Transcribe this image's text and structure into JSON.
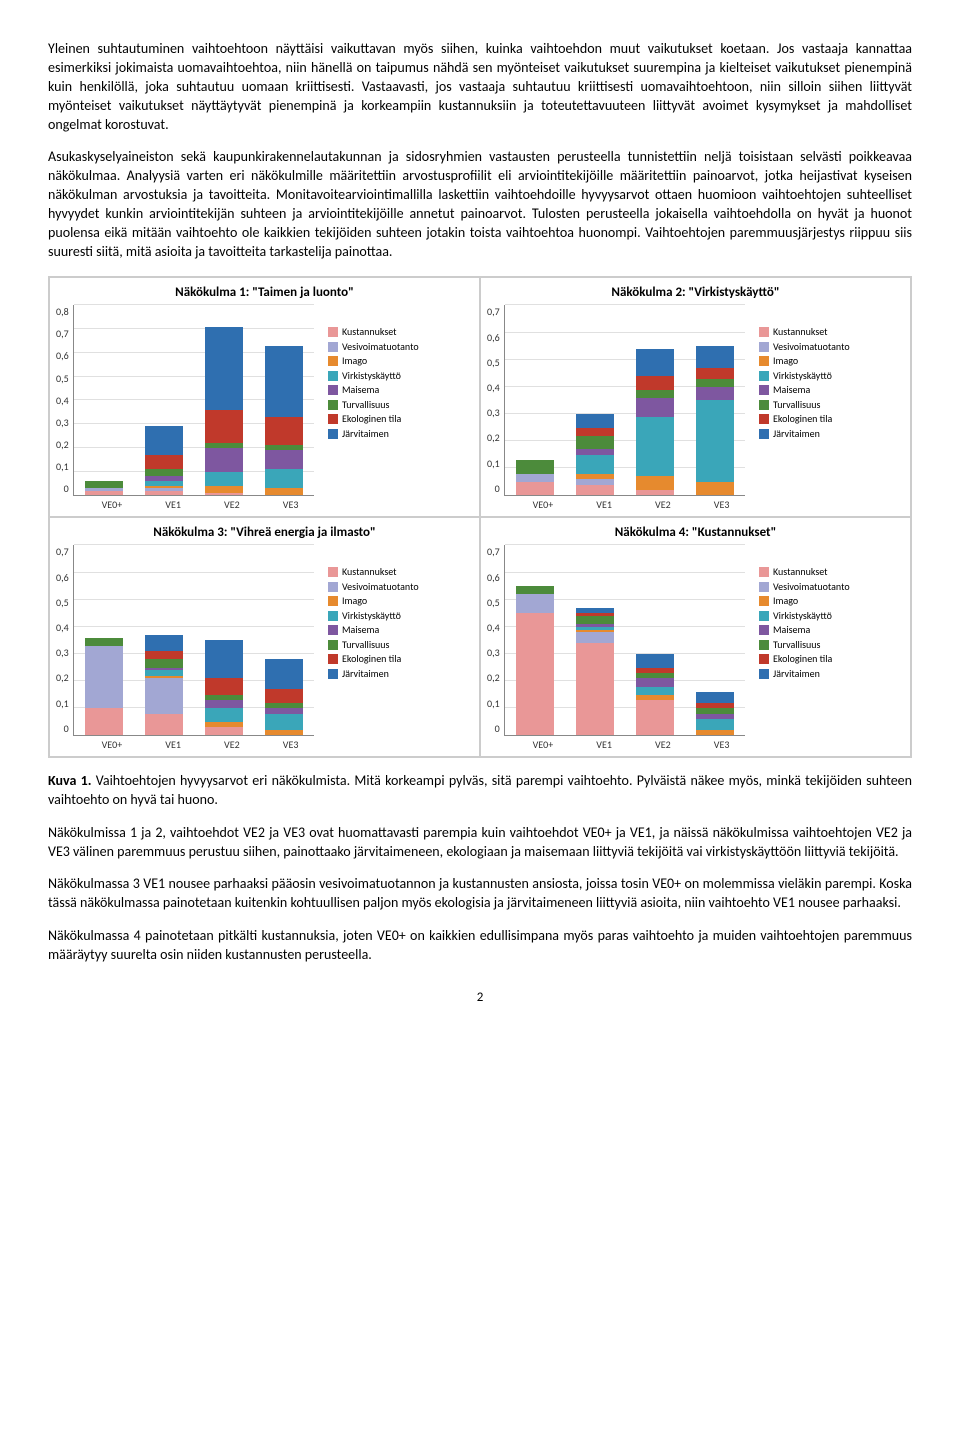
{
  "paragraphs": {
    "p1": "Yleinen suhtautuminen vaihtoehtoon näyttäisi vaikuttavan myös siihen, kuinka vaihtoehdon muut vaikutukset koetaan. Jos vastaaja kannattaa esimerkiksi jokimaista uomavaihtoehtoa, niin hänellä on taipumus nähdä sen myönteiset vaikutukset suurempina ja kielteiset vaikutukset pienempinä kuin henkilöllä, joka suhtautuu uomaan kriittisesti. Vastaavasti, jos vastaaja suhtautuu kriittisesti uomavaihtoehtoon, niin silloin siihen liittyvät myönteiset vaikutukset näyttäytyvät pienempinä ja korkeampiin kustannuksiin ja toteutettavuuteen liittyvät avoimet kysymykset ja mahdolliset ongelmat korostuvat.",
    "p2": "Asukaskyselyaineiston sekä kaupunkirakennelautakunnan ja sidosryhmien vastausten perusteella tunnistettiin neljä toisistaan selvästi poikkeavaa näkökulmaa. Analyysiä varten eri näkökulmille määritettiin arvostusprofiilit eli arviointitekijöille määritettiin painoarvot, jotka heijastivat kyseisen näkökulman arvostuksia ja tavoitteita. Monitavoitearviointimallilla laskettiin vaihtoehdoille hyvyysarvot ottaen huomioon vaihtoehtojen suhteelliset hyvyydet kunkin arviointitekijän suhteen ja arviointitekijöille annetut painoarvot. Tulosten perusteella jokaisella vaihtoehdolla on hyvät ja huonot puolensa eikä mitään vaihtoehto ole kaikkien tekijöiden suhteen jotakin toista vaihtoehtoa huonompi. Vaihtoehtojen paremmuusjärjestys riippuu siis suuresti siitä, mitä asioita ja tavoitteita tarkastelija painottaa.",
    "caption_label": "Kuva 1.",
    "caption_text": " Vaihtoehtojen hyvyysarvot eri näkökulmista. Mitä korkeampi pylväs, sitä parempi vaihtoehto. Pylväistä näkee myös, minkä tekijöiden suhteen vaihtoehto on hyvä tai huono.",
    "p3": "Näkökulmissa 1 ja 2, vaihtoehdot VE2 ja VE3 ovat huomattavasti parempia kuin vaihtoehdot VE0+ ja VE1, ja näissä näkökulmissa vaihtoehtojen VE2 ja VE3 välinen paremmuus perustuu siihen, painottaako järvitaimeneen, ekologiaan ja maisemaan liittyviä tekijöitä vai virkistyskäyttöön liittyviä tekijöitä.",
    "p4": "Näkökulmassa 3 VE1 nousee parhaaksi pääosin vesivoimatuotannon ja kustannusten ansiosta, joissa tosin VE0+ on molemmissa vieläkin parempi. Koska tässä näkökulmassa painotetaan kuitenkin kohtuullisen paljon myös ekologisia ja järvitaimeneen liittyviä asioita, niin vaihtoehto VE1 nousee parhaaksi.",
    "p5": "Näkökulmassa 4 painotetaan pitkälti kustannuksia, joten VE0+ on kaikkien edullisimpana myös paras vaihtoehto ja muiden vaihtoehtojen paremmuus määräytyy suurelta osin niiden kustannusten perusteella."
  },
  "page_number": "2",
  "legend": [
    {
      "label": "Kustannukset",
      "color": "#e99797"
    },
    {
      "label": "Vesivoimatuotanto",
      "color": "#a2a7d3"
    },
    {
      "label": "Imago",
      "color": "#e68a2e"
    },
    {
      "label": "Virkistyskäyttö",
      "color": "#3aa6b9"
    },
    {
      "label": "Maisema",
      "color": "#7e57a0"
    },
    {
      "label": "Turvallisuus",
      "color": "#4c8b3b"
    },
    {
      "label": "Ekologinen tila",
      "color": "#c0392b"
    },
    {
      "label": "Järvitaimen",
      "color": "#2f6fb0"
    }
  ],
  "x_categories": [
    "VE0+",
    "VE1",
    "VE2",
    "VE3"
  ],
  "charts": [
    {
      "title": "Näkökulma 1: \"Taimen ja luonto\"",
      "ymax": 0.8,
      "ystep": 0.1,
      "bars": [
        {
          "segments": [
            0.02,
            0.01,
            0.0,
            0.0,
            0.0,
            0.03,
            0.0,
            0.0
          ],
          "order": [
            "Kustannukset",
            "Vesivoimatuotanto",
            "Imago",
            "Virkistyskäyttö",
            "Maisema",
            "Turvallisuus",
            "Ekologinen tila",
            "Järvitaimen"
          ]
        },
        {
          "segments": [
            0.02,
            0.01,
            0.01,
            0.02,
            0.02,
            0.03,
            0.06,
            0.12
          ],
          "order": [
            "Kustannukset",
            "Vesivoimatuotanto",
            "Imago",
            "Virkistyskäyttö",
            "Maisema",
            "Turvallisuus",
            "Ekologinen tila",
            "Järvitaimen"
          ]
        },
        {
          "segments": [
            0.01,
            0.0,
            0.03,
            0.06,
            0.1,
            0.02,
            0.14,
            0.35
          ],
          "order": [
            "Kustannukset",
            "Vesivoimatuotanto",
            "Imago",
            "Virkistyskäyttö",
            "Maisema",
            "Turvallisuus",
            "Ekologinen tila",
            "Järvitaimen"
          ]
        },
        {
          "segments": [
            0.0,
            0.0,
            0.03,
            0.08,
            0.08,
            0.02,
            0.12,
            0.3
          ],
          "order": [
            "Kustannukset",
            "Vesivoimatuotanto",
            "Imago",
            "Virkistyskäyttö",
            "Maisema",
            "Turvallisuus",
            "Ekologinen tila",
            "Järvitaimen"
          ]
        }
      ]
    },
    {
      "title": "Näkökulma 2: \"Virkistyskäyttö\"",
      "ymax": 0.7,
      "ystep": 0.1,
      "bars": [
        {
          "segments": [
            0.05,
            0.03,
            0.0,
            0.0,
            0.0,
            0.05,
            0.0,
            0.0
          ]
        },
        {
          "segments": [
            0.04,
            0.02,
            0.02,
            0.07,
            0.02,
            0.05,
            0.03,
            0.05
          ]
        },
        {
          "segments": [
            0.02,
            0.0,
            0.05,
            0.22,
            0.07,
            0.03,
            0.05,
            0.1
          ]
        },
        {
          "segments": [
            0.0,
            0.0,
            0.05,
            0.3,
            0.05,
            0.03,
            0.04,
            0.08
          ]
        }
      ]
    },
    {
      "title": "Näkökulma 3: \"Vihreä energia ja ilmasto\"",
      "ymax": 0.7,
      "ystep": 0.1,
      "bars": [
        {
          "segments": [
            0.1,
            0.23,
            0.0,
            0.0,
            0.0,
            0.03,
            0.0,
            0.0
          ]
        },
        {
          "segments": [
            0.08,
            0.13,
            0.01,
            0.02,
            0.01,
            0.03,
            0.03,
            0.06
          ]
        },
        {
          "segments": [
            0.03,
            0.0,
            0.02,
            0.05,
            0.03,
            0.02,
            0.06,
            0.14
          ]
        },
        {
          "segments": [
            0.0,
            0.0,
            0.02,
            0.06,
            0.02,
            0.02,
            0.05,
            0.11
          ]
        }
      ]
    },
    {
      "title": "Näkökulma 4: \"Kustannukset\"",
      "ymax": 0.7,
      "ystep": 0.1,
      "bars": [
        {
          "segments": [
            0.45,
            0.07,
            0.0,
            0.0,
            0.0,
            0.03,
            0.0,
            0.0
          ]
        },
        {
          "segments": [
            0.34,
            0.04,
            0.01,
            0.01,
            0.01,
            0.03,
            0.01,
            0.02
          ]
        },
        {
          "segments": [
            0.13,
            0.0,
            0.02,
            0.03,
            0.03,
            0.02,
            0.02,
            0.05
          ]
        },
        {
          "segments": [
            0.0,
            0.0,
            0.02,
            0.04,
            0.02,
            0.02,
            0.02,
            0.04
          ]
        }
      ]
    }
  ]
}
